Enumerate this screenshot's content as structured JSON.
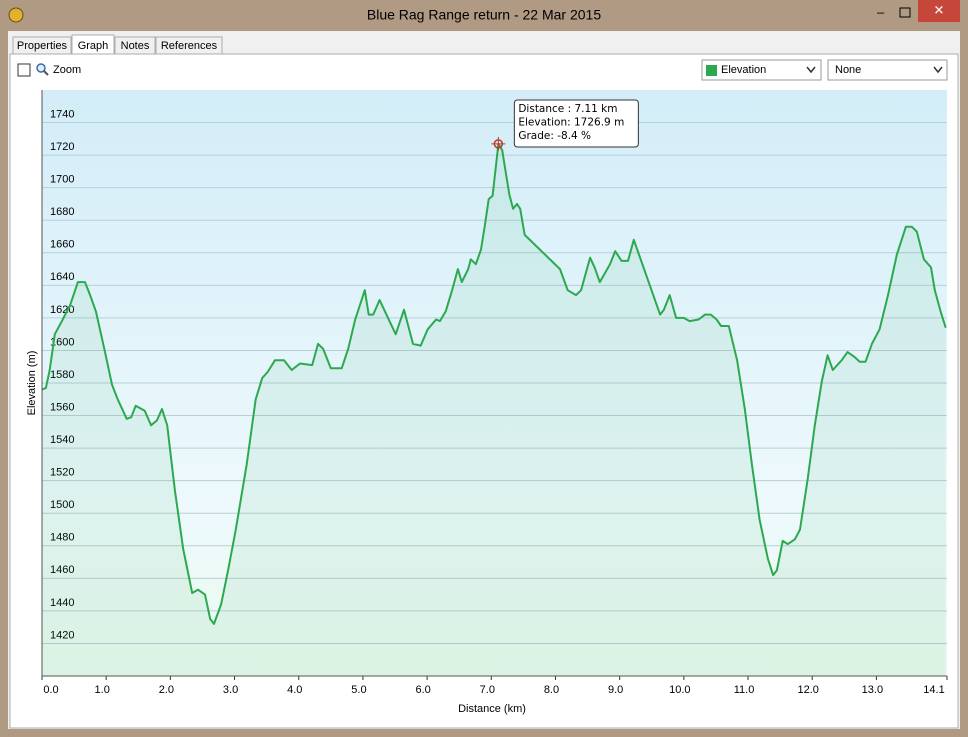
{
  "window": {
    "title": "Blue Rag Range return - 22 Mar 2015"
  },
  "tabs": [
    "Properties",
    "Graph",
    "Notes",
    "References"
  ],
  "controls": {
    "zoom": "Zoom",
    "secondary": "None"
  },
  "tooltip": {
    "lines": [
      "Distance : 7.11 km",
      "Elevation: 1726.9 m",
      "Grade: -8.4 %"
    ]
  },
  "chart_data": {
    "type": "area",
    "xlabel": "Distance  (km)",
    "ylabel": "Elevation (m)",
    "xlim": [
      0,
      14.1
    ],
    "ylim": [
      1400,
      1760
    ],
    "xticks": [
      {
        "value": 0,
        "label": "0.0"
      },
      {
        "value": 1,
        "label": "1.0"
      },
      {
        "value": 2,
        "label": "2.0"
      },
      {
        "value": 3,
        "label": "3.0"
      },
      {
        "value": 4,
        "label": "4.0"
      },
      {
        "value": 5,
        "label": "5.0"
      },
      {
        "value": 6,
        "label": "6.0"
      },
      {
        "value": 7,
        "label": "7.0"
      },
      {
        "value": 8,
        "label": "8.0"
      },
      {
        "value": 9,
        "label": "9.0"
      },
      {
        "value": 10,
        "label": "10.0"
      },
      {
        "value": 11,
        "label": "11.0"
      },
      {
        "value": 12,
        "label": "12.0"
      },
      {
        "value": 13,
        "label": "13.0"
      },
      14.1
    ],
    "yticks": [
      1420,
      1440,
      1460,
      1480,
      1500,
      1520,
      1540,
      1560,
      1580,
      1600,
      1620,
      1640,
      1660,
      1680,
      1700,
      1720,
      1740
    ],
    "grid": true,
    "x": [
      0,
      0.06,
      0.12,
      0.2,
      0.31,
      0.44,
      0.56,
      0.67,
      0.75,
      0.84,
      0.97,
      1.09,
      1.18,
      1.32,
      1.39,
      1.46,
      1.6,
      1.7,
      1.79,
      1.87,
      1.95,
      2.07,
      2.2,
      2.34,
      2.43,
      2.54,
      2.62,
      2.68,
      2.79,
      2.9,
      3.02,
      3.19,
      3.33,
      3.43,
      3.52,
      3.63,
      3.77,
      3.89,
      4.02,
      4.21,
      4.3,
      4.38,
      4.5,
      4.67,
      4.77,
      4.88,
      5.03,
      5.09,
      5.16,
      5.26,
      5.39,
      5.51,
      5.64,
      5.78,
      5.9,
      6.01,
      6.14,
      6.2,
      6.29,
      6.39,
      6.48,
      6.54,
      6.64,
      6.68,
      6.76,
      6.84,
      6.9,
      6.96,
      7.02,
      7.11,
      7.17,
      7.23,
      7.28,
      7.34,
      7.4,
      7.45,
      7.52,
      8.07,
      8.19,
      8.32,
      8.4,
      8.49,
      8.54,
      8.61,
      8.69,
      8.85,
      8.93,
      9.03,
      9.13,
      9.22,
      9.63,
      9.69,
      9.78,
      9.88,
      10.0,
      10.09,
      10.23,
      10.33,
      10.42,
      10.51,
      10.58,
      10.7,
      10.83,
      10.95,
      11.06,
      11.18,
      11.31,
      11.39,
      11.45,
      11.54,
      11.62,
      11.73,
      11.81,
      11.93,
      12.04,
      12.15,
      12.24,
      12.32,
      12.46,
      12.55,
      12.66,
      12.74,
      12.83,
      12.93,
      13.05,
      13.18,
      13.32,
      13.46,
      13.55,
      13.63,
      13.74,
      13.85,
      13.91,
      14.0,
      14.08
    ],
    "series": [
      {
        "name": "Elevation",
        "color": "#2ca94f",
        "values": [
          1576,
          1577,
          1588,
          1610,
          1618,
          1628,
          1642,
          1642,
          1634,
          1624,
          1601,
          1579,
          1570,
          1558,
          1559,
          1566,
          1563,
          1554,
          1557,
          1564,
          1554,
          1514,
          1478,
          1451,
          1453,
          1450,
          1435,
          1432,
          1444,
          1465,
          1490,
          1530,
          1570,
          1583,
          1587,
          1594,
          1594,
          1588,
          1592,
          1591,
          1604,
          1601,
          1589,
          1589,
          1601,
          1619,
          1637,
          1622,
          1622,
          1631,
          1620,
          1610,
          1625,
          1604,
          1603,
          1613,
          1619,
          1618,
          1624,
          1637,
          1650,
          1642,
          1650,
          1656,
          1653,
          1662,
          1677,
          1693,
          1695,
          1726.9,
          1723,
          1708,
          1696,
          1687,
          1690,
          1687,
          1671,
          1650,
          1637,
          1634,
          1637,
          1650,
          1657,
          1651,
          1642,
          1653,
          1661,
          1655,
          1655,
          1668,
          1622,
          1625,
          1634,
          1620,
          1620,
          1618,
          1619,
          1622,
          1622,
          1619,
          1615,
          1615,
          1594,
          1564,
          1530,
          1496,
          1472,
          1462,
          1465,
          1483,
          1481,
          1484,
          1490,
          1521,
          1554,
          1581,
          1597,
          1588,
          1594,
          1599,
          1596,
          1593,
          1593,
          1604,
          1613,
          1634,
          1659,
          1676,
          1676,
          1673,
          1656,
          1651,
          1637,
          1624,
          1614
        ]
      }
    ],
    "highlight": {
      "x": 7.11,
      "value": 1726.9
    }
  }
}
